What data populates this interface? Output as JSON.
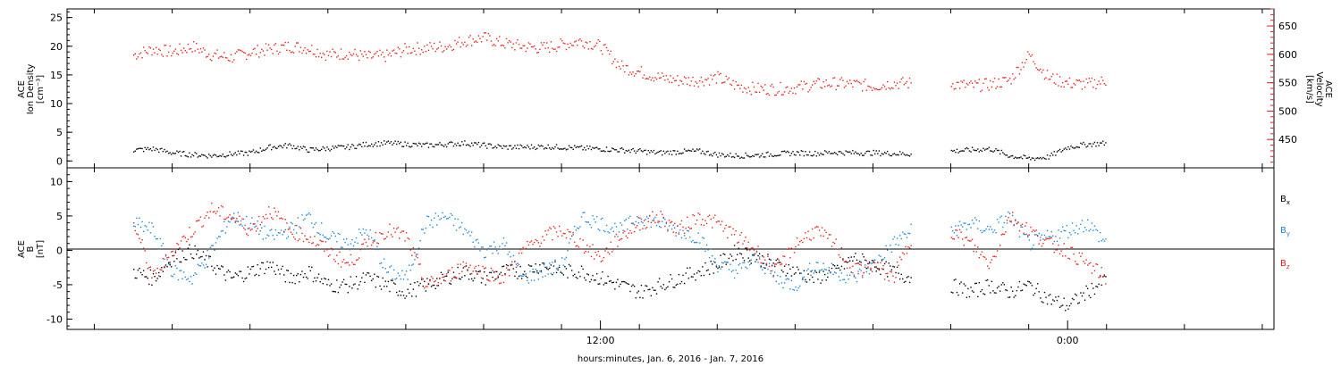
{
  "chart_data": [
    {
      "type": "scatter",
      "panel": "plasma",
      "ylabel_left": [
        "ACE",
        "Ion Density",
        "[cm⁻³]"
      ],
      "ylabel_right": [
        "ACE",
        "Velocity",
        "[km/s]"
      ],
      "ylim_left": [
        -1.2,
        26.5
      ],
      "ylim_right": [
        400,
        680
      ],
      "yticks_left": [
        "0",
        "5",
        "10",
        "15",
        "20",
        "25"
      ],
      "yticks_right": [
        "450",
        "500",
        "550",
        "600",
        "650"
      ],
      "series": [
        {
          "axis": "right",
          "color": "#e8201c",
          "x": [
            0.0,
            0.5,
            1.0,
            1.5,
            2.0,
            2.5,
            3.0,
            3.5,
            4.0,
            4.5,
            5.0,
            5.5,
            6.0,
            6.5,
            7.0,
            7.5,
            8.0,
            8.5,
            9.0,
            9.5,
            10.0,
            10.5,
            11.0,
            11.5,
            12.0,
            12.5,
            13.0,
            13.5,
            14.0,
            14.5,
            15.0,
            15.5,
            16.0,
            16.5,
            17.0,
            17.5,
            18.0,
            18.5,
            19.0,
            19.5,
            20.0,
            21.0,
            21.5,
            22.0,
            22.5,
            23.0,
            23.5,
            24.0,
            24.5,
            25.0
          ],
          "values": [
            600,
            610,
            605,
            615,
            600,
            595,
            605,
            610,
            615,
            612,
            600,
            603,
            596,
            598,
            610,
            612,
            615,
            625,
            630,
            620,
            615,
            612,
            618,
            625,
            615,
            580,
            570,
            560,
            555,
            555,
            560,
            545,
            540,
            540,
            542,
            548,
            550,
            548,
            545,
            550,
            550,
            550,
            545,
            548,
            555,
            600,
            560,
            550,
            548,
            555
          ]
        },
        {
          "axis": "left",
          "color": "#000000",
          "x": [
            0.0,
            0.5,
            1.0,
            1.5,
            2.0,
            2.5,
            3.0,
            3.5,
            4.0,
            4.5,
            5.0,
            5.5,
            6.0,
            6.5,
            7.0,
            7.5,
            8.0,
            8.5,
            9.0,
            9.5,
            10.0,
            10.5,
            11.0,
            11.5,
            12.0,
            12.5,
            13.0,
            13.5,
            14.0,
            14.5,
            15.0,
            15.5,
            16.0,
            16.5,
            17.0,
            17.5,
            18.0,
            18.5,
            19.0,
            19.5,
            20.0,
            21.0,
            21.5,
            22.0,
            22.5,
            23.0,
            23.5,
            24.0,
            24.5,
            25.0
          ],
          "values": [
            2.0,
            2.2,
            1.5,
            1.2,
            1.0,
            1.3,
            1.5,
            2.5,
            2.8,
            2.0,
            2.3,
            2.5,
            3.0,
            3.2,
            3.0,
            2.8,
            3.0,
            3.2,
            2.8,
            2.5,
            2.5,
            2.6,
            2.5,
            2.3,
            2.2,
            2.0,
            1.8,
            1.5,
            1.7,
            1.8,
            1.2,
            1.0,
            1.1,
            1.3,
            1.5,
            1.4,
            1.6,
            1.5,
            1.5,
            1.4,
            1.3,
            1.8,
            2.0,
            2.2,
            1.0,
            0.5,
            0.8,
            2.5,
            3.0,
            3.2
          ]
        }
      ]
    },
    {
      "type": "scatter",
      "panel": "magnetic-field",
      "ylabel_left": [
        "ACE",
        "B",
        "[nT]"
      ],
      "ylim": [
        -11.5,
        12
      ],
      "yticks": [
        "-10",
        "-5",
        "0",
        "5",
        "10"
      ],
      "legend": [
        "Bx",
        "By",
        "Bz"
      ],
      "series": [
        {
          "name": "Bx",
          "color": "#000000",
          "x": [
            0.0,
            0.5,
            1.0,
            1.5,
            2.0,
            2.5,
            3.0,
            3.5,
            4.0,
            4.5,
            5.0,
            5.5,
            6.0,
            6.5,
            7.0,
            7.5,
            8.0,
            8.5,
            9.0,
            9.5,
            10.0,
            10.5,
            11.0,
            11.5,
            12.0,
            12.5,
            13.0,
            13.5,
            14.0,
            14.5,
            15.0,
            15.5,
            16.0,
            16.5,
            17.0,
            17.5,
            18.0,
            18.5,
            19.0,
            19.5,
            20.0,
            21.0,
            21.5,
            22.0,
            22.5,
            23.0,
            23.5,
            24.0,
            24.5,
            25.0
          ],
          "values": [
            -3,
            -4,
            -1,
            0,
            -2,
            -4,
            -3,
            -2,
            -4,
            -3,
            -5,
            -5,
            -4,
            -5,
            -6,
            -5,
            -4,
            -3,
            -4,
            -3,
            -3,
            -2,
            -3,
            -3,
            -4,
            -5,
            -6,
            -5,
            -4,
            -3,
            -2,
            0,
            -1,
            -2,
            -3,
            -4,
            -3,
            -1,
            -2,
            -3,
            -4,
            -5,
            -6,
            -5,
            -6,
            -5,
            -7,
            -8,
            -6,
            -4
          ]
        },
        {
          "name": "By",
          "color": "#1d86d8",
          "x": [
            0.0,
            0.5,
            1.0,
            1.5,
            2.0,
            2.5,
            3.0,
            3.5,
            4.0,
            4.5,
            5.0,
            5.5,
            6.0,
            6.5,
            7.0,
            7.5,
            8.0,
            8.5,
            9.0,
            9.5,
            10.0,
            10.5,
            11.0,
            11.5,
            12.0,
            12.5,
            13.0,
            13.5,
            14.0,
            14.5,
            15.0,
            15.5,
            16.0,
            16.5,
            17.0,
            17.5,
            18.0,
            18.5,
            19.0,
            19.5,
            20.0,
            21.0,
            21.5,
            22.0,
            22.5,
            23.0,
            23.5,
            24.0,
            24.5,
            25.0
          ],
          "values": [
            4,
            3,
            -3,
            -4,
            0,
            5,
            4,
            2,
            3,
            5,
            2,
            1,
            3,
            -3,
            -4,
            4,
            5,
            3,
            0,
            1,
            -4,
            -3,
            -2,
            5,
            4,
            3,
            5,
            4,
            3,
            2,
            -2,
            -3,
            -1,
            -4,
            -5,
            -2,
            -3,
            -4,
            -2,
            1,
            3,
            3,
            4,
            3,
            5,
            1,
            2,
            3,
            4,
            1
          ]
        },
        {
          "name": "Bz",
          "color": "#e8201c",
          "x": [
            0.0,
            0.5,
            1.0,
            1.5,
            2.0,
            2.5,
            3.0,
            3.5,
            4.0,
            4.5,
            5.0,
            5.5,
            6.0,
            6.5,
            7.0,
            7.5,
            8.0,
            8.5,
            9.0,
            9.5,
            10.0,
            10.5,
            11.0,
            11.5,
            12.0,
            12.5,
            13.0,
            13.5,
            14.0,
            14.5,
            15.0,
            15.5,
            16.0,
            16.5,
            17.0,
            17.5,
            18.0,
            18.5,
            19.0,
            19.5,
            20.0,
            21.0,
            21.5,
            22.0,
            22.5,
            23.0,
            23.5,
            24.0,
            24.5,
            25.0
          ],
          "values": [
            4,
            -4,
            0,
            3,
            6,
            5,
            3,
            6,
            3,
            2,
            0,
            -2,
            1,
            3,
            2,
            -5,
            -4,
            -2,
            -3,
            -4,
            0,
            2,
            3,
            1,
            -1,
            2,
            4,
            5,
            3,
            5,
            4,
            2,
            0,
            -3,
            1,
            3,
            1,
            -3,
            -2,
            -4,
            2,
            3,
            1,
            -2,
            5,
            3,
            1,
            0,
            -2,
            -4
          ]
        }
      ]
    }
  ],
  "x_axis": {
    "ticks": [
      "12:00",
      "0:00"
    ],
    "label": "hours:minutes, Jan.  6, 2016 - Jan.  7, 2016"
  },
  "legend_labels": {
    "bx": "B",
    "bx_sub": "x",
    "by": "B",
    "by_sub": "y",
    "bz": "B",
    "bz_sub": "z"
  }
}
